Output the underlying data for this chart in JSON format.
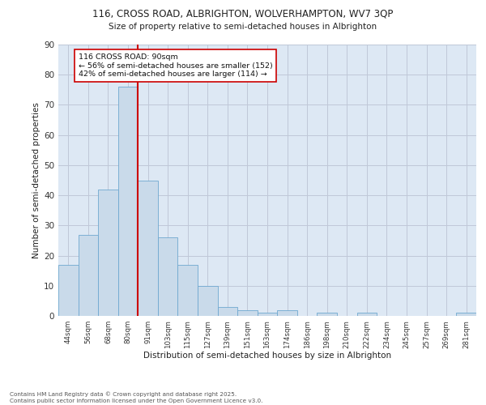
{
  "title_line1": "116, CROSS ROAD, ALBRIGHTON, WOLVERHAMPTON, WV7 3QP",
  "title_line2": "Size of property relative to semi-detached houses in Albrighton",
  "xlabel": "Distribution of semi-detached houses by size in Albrighton",
  "ylabel": "Number of semi-detached properties",
  "bin_labels": [
    "44sqm",
    "56sqm",
    "68sqm",
    "80sqm",
    "91sqm",
    "103sqm",
    "115sqm",
    "127sqm",
    "139sqm",
    "151sqm",
    "163sqm",
    "174sqm",
    "186sqm",
    "198sqm",
    "210sqm",
    "222sqm",
    "234sqm",
    "245sqm",
    "257sqm",
    "269sqm",
    "281sqm"
  ],
  "bar_values": [
    17,
    27,
    42,
    76,
    45,
    26,
    17,
    10,
    3,
    2,
    1,
    2,
    0,
    1,
    0,
    1,
    0,
    0,
    0,
    0,
    1
  ],
  "bar_color": "#c9daea",
  "bar_edge_color": "#6fa8d0",
  "grid_color": "#c0c8d8",
  "background_color": "#dde8f4",
  "vline_color": "#cc0000",
  "annotation_title": "116 CROSS ROAD: 90sqm",
  "annotation_line1": "← 56% of semi-detached houses are smaller (152)",
  "annotation_line2": "42% of semi-detached houses are larger (114) →",
  "annotation_box_color": "#ffffff",
  "annotation_box_edge": "#cc0000",
  "footnote_line1": "Contains HM Land Registry data © Crown copyright and database right 2025.",
  "footnote_line2": "Contains public sector information licensed under the Open Government Licence v3.0.",
  "ylim": [
    0,
    90
  ],
  "yticks": [
    0,
    10,
    20,
    30,
    40,
    50,
    60,
    70,
    80,
    90
  ]
}
